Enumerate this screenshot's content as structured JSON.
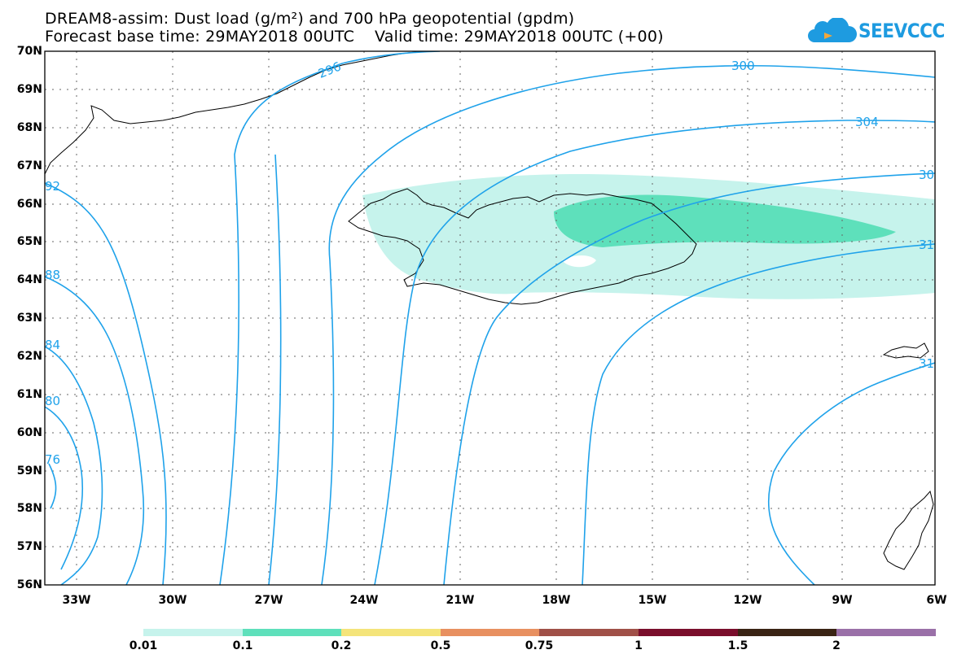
{
  "title_line1": "DREAM8-assim: Dust load (g/m²) and 700 hPa geopotential (gpdm)",
  "title_line2": "Forecast base time: 29MAY2018 00UTC    Valid time: 29MAY2018 00UTC (+00)",
  "logo_text": "SEEVCCC",
  "map": {
    "lat_labels": [
      "70N",
      "69N",
      "68N",
      "67N",
      "66N",
      "65N",
      "64N",
      "63N",
      "62N",
      "61N",
      "60N",
      "59N",
      "58N",
      "57N",
      "56N"
    ],
    "lon_labels": [
      "33W",
      "30W",
      "27W",
      "24W",
      "21W",
      "18W",
      "15W",
      "12W",
      "9W",
      "6W"
    ],
    "contour_labels": [
      "296",
      "300",
      "304",
      "30",
      "31",
      "31",
      "92",
      "88",
      "84",
      "80",
      "76"
    ],
    "contour_color": "#1fa2ea",
    "dust_colors": {
      "low": "#c6f3ec",
      "mid": "#5ee0bb"
    }
  },
  "colorbar": {
    "labels": [
      "0.01",
      "0.1",
      "0.2",
      "0.5",
      "0.75",
      "1",
      "1.5",
      "2"
    ],
    "colors": [
      "#c6f3ec",
      "#5ee0bb",
      "#f4e47a",
      "#e89060",
      "#a05048",
      "#7a0e2c",
      "#3a2414",
      "#9a70a8"
    ]
  }
}
